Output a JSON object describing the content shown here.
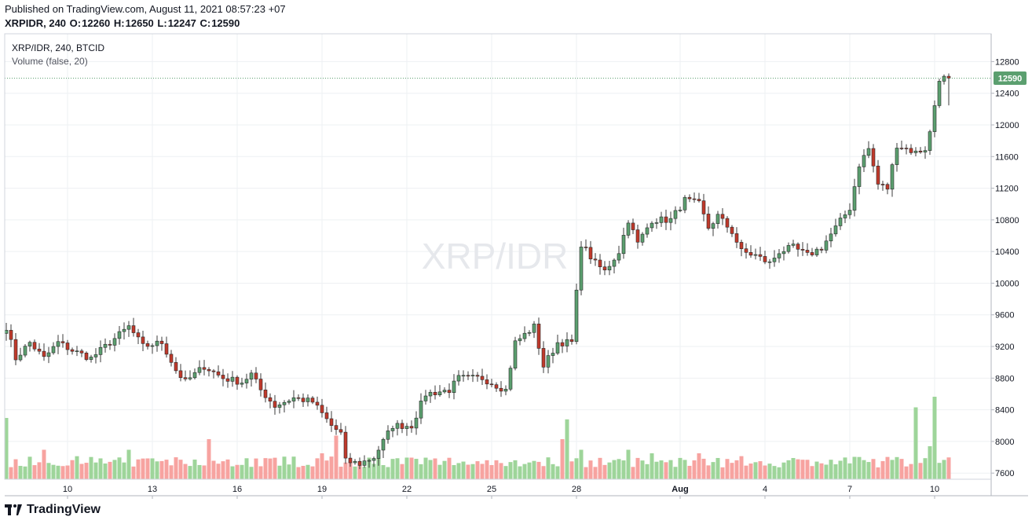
{
  "header": {
    "published": "Published on TradingView.com, August 11, 2021 08:57:23 +07",
    "symbol_line": "XRPIDR, 240",
    "open_label": "O:",
    "open": "12260",
    "high_label": "H:",
    "high": "12650",
    "low_label": "L:",
    "low": "12247",
    "close_label": "C:",
    "close": "12590"
  },
  "legend": {
    "series": "XRP/IDR, 240, BTCID",
    "volume": "Volume (false, 20)"
  },
  "watermark": "XRP/IDR",
  "footer": {
    "brand": "TradingView"
  },
  "colors": {
    "up": "#26a69a",
    "up_body": "#5b9f6f",
    "down": "#c0392b",
    "vol_up": "#9ed59a",
    "vol_down": "#f7a3a0",
    "last": "#5b9f6f"
  },
  "chart_data": {
    "type": "candlestick",
    "ylim": [
      7200,
      12900
    ],
    "yticks": [
      7600,
      8000,
      8400,
      8800,
      9200,
      9600,
      10000,
      10400,
      10800,
      11200,
      11600,
      12000,
      12400,
      12800
    ],
    "last_price": 12590,
    "last_price_label": "12590",
    "xticks": [
      {
        "label": "10",
        "index": 13
      },
      {
        "label": "13",
        "index": 31
      },
      {
        "label": "16",
        "index": 49
      },
      {
        "label": "19",
        "index": 67
      },
      {
        "label": "22",
        "index": 85
      },
      {
        "label": "25",
        "index": 103
      },
      {
        "label": "28",
        "index": 121
      },
      {
        "label": "Aug",
        "index": 143
      },
      {
        "label": "4",
        "index": 161
      },
      {
        "label": "7",
        "index": 179
      },
      {
        "label": "10",
        "index": 197
      }
    ],
    "anchors": [
      [
        0,
        9450
      ],
      [
        2,
        9050
      ],
      [
        5,
        9250
      ],
      [
        8,
        9050
      ],
      [
        11,
        9250
      ],
      [
        14,
        9150
      ],
      [
        18,
        9050
      ],
      [
        22,
        9250
      ],
      [
        26,
        9450
      ],
      [
        29,
        9200
      ],
      [
        33,
        9250
      ],
      [
        36,
        8900
      ],
      [
        38,
        8750
      ],
      [
        42,
        8950
      ],
      [
        46,
        8800
      ],
      [
        50,
        8750
      ],
      [
        52,
        8850
      ],
      [
        54,
        8650
      ],
      [
        57,
        8450
      ],
      [
        61,
        8550
      ],
      [
        65,
        8500
      ],
      [
        69,
        8200
      ],
      [
        71,
        8100
      ],
      [
        72,
        7750
      ],
      [
        75,
        7720
      ],
      [
        78,
        7800
      ],
      [
        82,
        8200
      ],
      [
        86,
        8200
      ],
      [
        89,
        8600
      ],
      [
        94,
        8650
      ],
      [
        96,
        8800
      ],
      [
        101,
        8800
      ],
      [
        106,
        8650
      ],
      [
        108,
        9250
      ],
      [
        112,
        9450
      ],
      [
        114,
        8950
      ],
      [
        117,
        9250
      ],
      [
        120,
        9250
      ],
      [
        122,
        10500
      ],
      [
        125,
        10250
      ],
      [
        127,
        10150
      ],
      [
        130,
        10400
      ],
      [
        132,
        10800
      ],
      [
        134,
        10500
      ],
      [
        137,
        10800
      ],
      [
        141,
        10800
      ],
      [
        144,
        11050
      ],
      [
        147,
        11000
      ],
      [
        149,
        10700
      ],
      [
        151,
        10850
      ],
      [
        154,
        10650
      ],
      [
        156,
        10400
      ],
      [
        159,
        10350
      ],
      [
        162,
        10250
      ],
      [
        164,
        10400
      ],
      [
        167,
        10450
      ],
      [
        170,
        10350
      ],
      [
        173,
        10450
      ],
      [
        176,
        10700
      ],
      [
        179,
        10950
      ],
      [
        181,
        11500
      ],
      [
        183,
        11700
      ],
      [
        185,
        11250
      ],
      [
        187,
        11200
      ],
      [
        189,
        11750
      ],
      [
        191,
        11700
      ],
      [
        193,
        11650
      ],
      [
        195,
        11700
      ],
      [
        196,
        11900
      ],
      [
        197,
        12250
      ],
      [
        198,
        12590
      ]
    ],
    "spikes": {
      "0": 8,
      "8": 3.5,
      "26": 3.5,
      "43": 5,
      "67": 3,
      "70": 5.5,
      "118": 5,
      "119": 7.8,
      "122": 3.5,
      "132": 3.5,
      "137": 3,
      "147": 3,
      "193": 9.5,
      "197": 11,
      "196": 4
    }
  }
}
